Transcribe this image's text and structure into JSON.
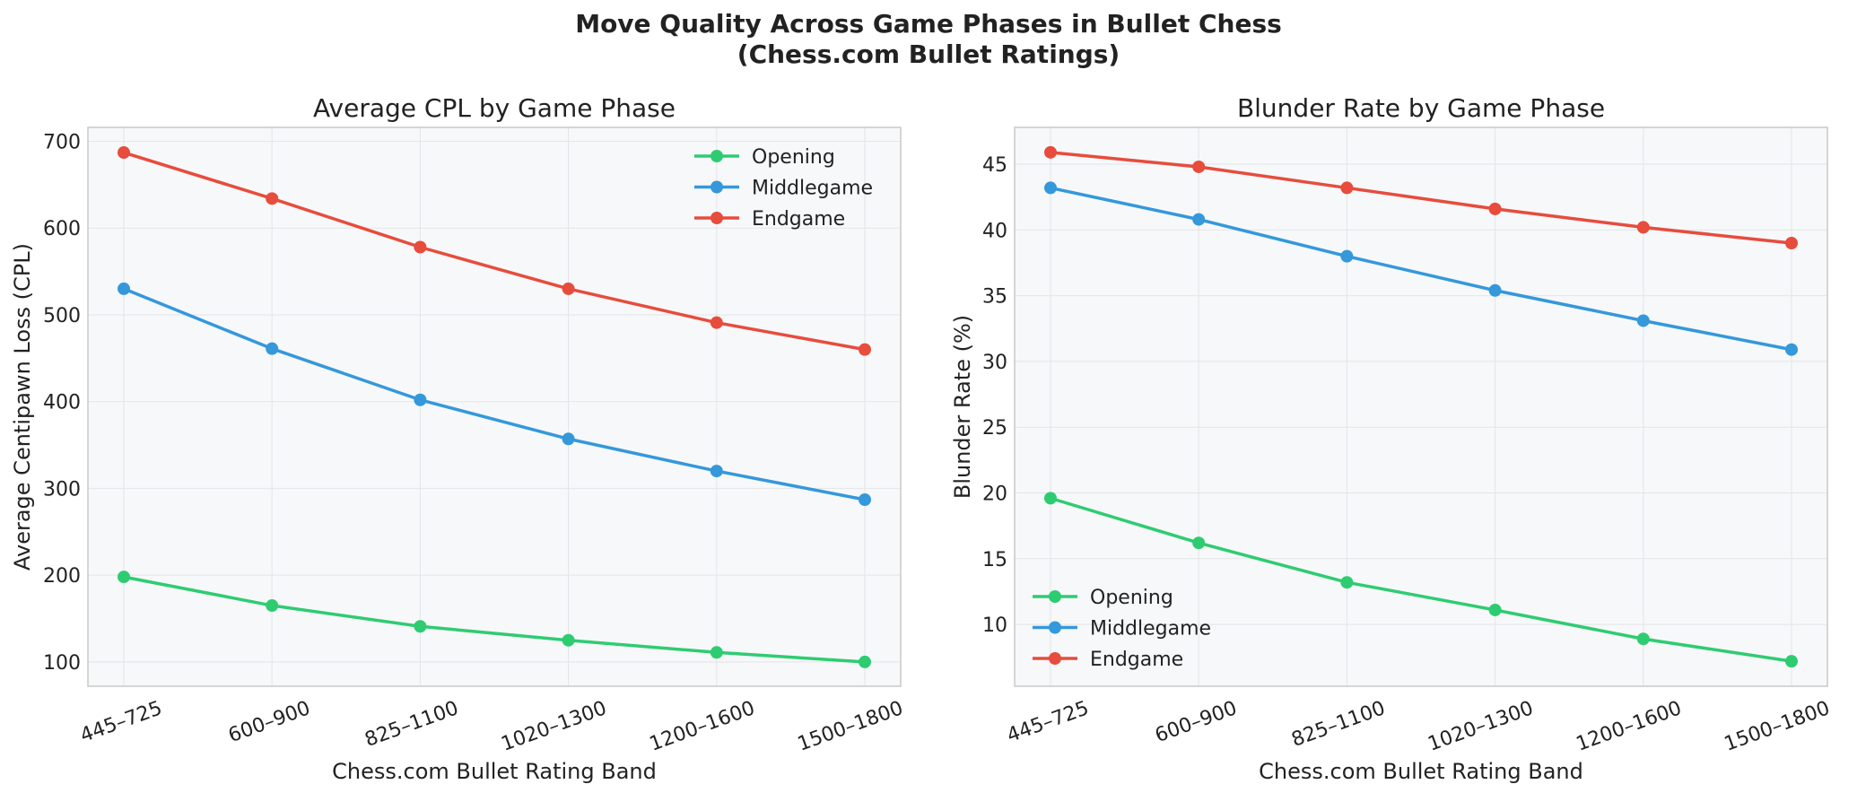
{
  "figure": {
    "title_line1": "Move Quality Across Game Phases in Bullet Chess",
    "title_line2": "(Chess.com Bullet Ratings)"
  },
  "colors": {
    "Opening": "#2ecc71",
    "Middlegame": "#3498db",
    "Endgame": "#e74c3c",
    "plot_background": "#f7f8fa",
    "grid": "#e3e5e8",
    "frame": "#c8c8c8",
    "text": "#222222"
  },
  "chart_data": [
    {
      "type": "line",
      "title": "Average CPL by Game Phase",
      "xlabel": "Chess.com Bullet Rating Band",
      "ylabel": "Average Centipawn Loss (CPL)",
      "categories": [
        "445–725",
        "600–900",
        "825–1100",
        "1020–1300",
        "1200–1600",
        "1500–1800"
      ],
      "ylim": [
        72,
        716
      ],
      "yticks": [
        100,
        200,
        300,
        400,
        500,
        600,
        700
      ],
      "grid": true,
      "legend": "top-right",
      "series": [
        {
          "name": "Opening",
          "values": [
            198,
            165,
            141,
            125,
            111,
            100
          ]
        },
        {
          "name": "Middlegame",
          "values": [
            530,
            461,
            402,
            357,
            320,
            287
          ]
        },
        {
          "name": "Endgame",
          "values": [
            687,
            634,
            578,
            530,
            491,
            460
          ]
        }
      ]
    },
    {
      "type": "line",
      "title": "Blunder Rate by Game Phase",
      "xlabel": "Chess.com Bullet Rating Band",
      "ylabel": "Blunder Rate (%)",
      "categories": [
        "445–725",
        "600–900",
        "825–1100",
        "1020–1300",
        "1200–1600",
        "1500–1800"
      ],
      "ylim": [
        5.3,
        47.8
      ],
      "yticks": [
        10,
        15,
        20,
        25,
        30,
        35,
        40,
        45
      ],
      "grid": true,
      "legend": "bottom-left",
      "series": [
        {
          "name": "Opening",
          "values": [
            19.6,
            16.2,
            13.2,
            11.1,
            8.9,
            7.2
          ]
        },
        {
          "name": "Middlegame",
          "values": [
            43.2,
            40.8,
            38.0,
            35.4,
            33.1,
            30.9
          ]
        },
        {
          "name": "Endgame",
          "values": [
            45.9,
            44.8,
            43.2,
            41.6,
            40.2,
            39.0
          ]
        }
      ]
    }
  ]
}
